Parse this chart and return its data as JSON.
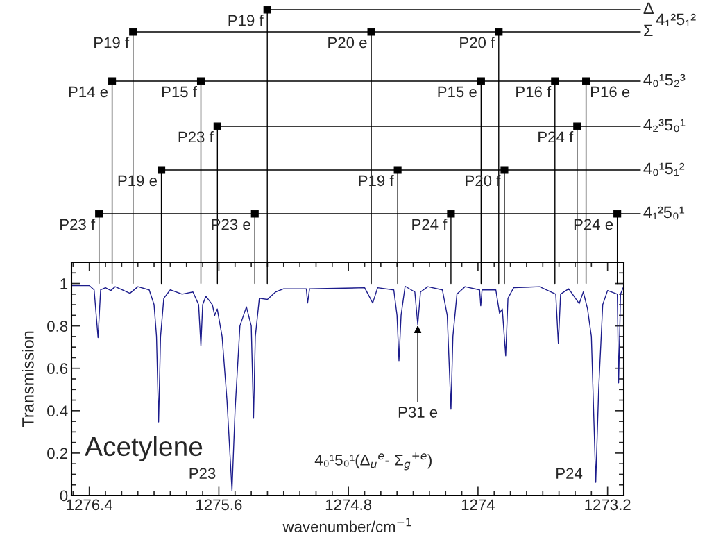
{
  "chart_data": {
    "type": "line",
    "xlabel": "wavenumber/cm$^{−1}$",
    "ylabel": "Transmission",
    "xlim": [
      1276.51,
      1273.1
    ],
    "ylim": [
      0,
      1.1
    ],
    "xticks": [
      1276.4,
      1275.6,
      1274.8,
      1274,
      1273.2
    ],
    "yticks": [
      0,
      0.2,
      0.4,
      0.6,
      0.8,
      1
    ],
    "grid": false,
    "legend": false,
    "marker": "none",
    "line_style": "solid",
    "series": [
      {
        "color": "#1c1c8c",
        "x": [
          1276.51,
          1276.4,
          1276.37,
          1276.346,
          1276.33,
          1276.3,
          1276.267,
          1276.24,
          1276.149,
          1276.1,
          1276.03,
          1276.0,
          1275.985,
          1275.972,
          1275.96,
          1275.94,
          1275.9,
          1275.827,
          1275.76,
          1275.725,
          1275.711,
          1275.7,
          1275.68,
          1275.64,
          1275.626,
          1275.61,
          1275.58,
          1275.55,
          1275.519,
          1275.5,
          1275.47,
          1275.43,
          1275.4,
          1275.386,
          1275.375,
          1275.35,
          1275.3,
          1275.25,
          1275.2,
          1275.06,
          1275.052,
          1275.04,
          1274.7,
          1274.65,
          1274.62,
          1274.52,
          1274.5,
          1274.488,
          1274.475,
          1274.45,
          1274.39,
          1274.372,
          1274.355,
          1274.31,
          1274.22,
          1274.19,
          1274.167,
          1274.155,
          1274.13,
          1274.08,
          1273.99,
          1273.983,
          1273.975,
          1273.89,
          1273.867,
          1273.85,
          1273.829,
          1273.815,
          1273.78,
          1273.62,
          1273.52,
          1273.504,
          1273.49,
          1273.44,
          1273.375,
          1273.35,
          1273.324,
          1273.3,
          1273.273,
          1273.255,
          1273.23,
          1273.2,
          1273.14,
          1273.132,
          1273.12,
          1273.1
        ],
        "values": [
          0.99,
          0.99,
          0.97,
          0.745,
          0.97,
          0.98,
          0.967,
          0.985,
          0.954,
          0.985,
          0.97,
          0.9,
          0.75,
          0.347,
          0.75,
          0.93,
          0.97,
          0.95,
          0.96,
          0.9,
          0.705,
          0.9,
          0.94,
          0.9,
          0.85,
          0.88,
          0.75,
          0.45,
          0.023,
          0.4,
          0.8,
          0.89,
          0.8,
          0.364,
          0.75,
          0.93,
          0.925,
          0.96,
          0.975,
          0.975,
          0.908,
          0.975,
          0.98,
          0.908,
          0.98,
          0.97,
          0.85,
          0.636,
          0.85,
          0.987,
          0.96,
          0.807,
          0.96,
          0.985,
          0.97,
          0.85,
          0.407,
          0.75,
          0.95,
          0.985,
          0.97,
          0.895,
          0.97,
          0.97,
          0.86,
          0.88,
          0.659,
          0.93,
          0.98,
          0.985,
          0.95,
          0.718,
          0.95,
          0.975,
          0.905,
          0.96,
          0.882,
          0.75,
          0.062,
          0.5,
          0.9,
          0.967,
          0.95,
          0.531,
          0.95,
          0.987
        ]
      }
    ],
    "annotations": [
      "Acetylene",
      "P23",
      "P24",
      "4₀¹5₀¹(Δ$_{u}$$^{e}$- Σ$_{g}$$^{+e}$)",
      {
        "text": "P31 e",
        "x": 1274.372,
        "y": 0.807
      },
      "Δ",
      "4₁²5₁²",
      "Σ",
      "4₀¹5₂³",
      "4₂³5₀¹",
      "4₀¹5₁²",
      "4₁²5₀¹"
    ],
    "ref_lines": [
      {
        "axis": "x",
        "value": 1275.301,
        "label": "P19 f"
      },
      {
        "axis": "x",
        "value": 1276.13,
        "label": "P19 f"
      },
      {
        "axis": "x",
        "value": 1274.659,
        "label": "P20 e"
      },
      {
        "axis": "x",
        "value": 1273.872,
        "label": "P20 f"
      },
      {
        "axis": "x",
        "value": 1276.259,
        "label": "P14 e"
      },
      {
        "axis": "x",
        "value": 1275.711,
        "label": "P15 f"
      },
      {
        "axis": "x",
        "value": 1273.981,
        "label": "P15 e"
      },
      {
        "axis": "x",
        "value": 1273.525,
        "label": "P16 f"
      },
      {
        "axis": "x",
        "value": 1273.333,
        "label": "P16 e"
      },
      {
        "axis": "x",
        "value": 1275.609,
        "label": "P23 f"
      },
      {
        "axis": "x",
        "value": 1273.388,
        "label": "P24 f"
      },
      {
        "axis": "x",
        "value": 1275.955,
        "label": "P19 e"
      },
      {
        "axis": "x",
        "value": 1274.496,
        "label": "P19 f"
      },
      {
        "axis": "x",
        "value": 1273.837,
        "label": "P20 f"
      },
      {
        "axis": "x",
        "value": 1276.34,
        "label": "P23 f"
      },
      {
        "axis": "x",
        "value": 1275.378,
        "label": "P23 e"
      },
      {
        "axis": "x",
        "value": 1274.167,
        "label": "P24 f"
      },
      {
        "axis": "x",
        "value": 1273.14,
        "label": "P24 e"
      }
    ]
  }
}
